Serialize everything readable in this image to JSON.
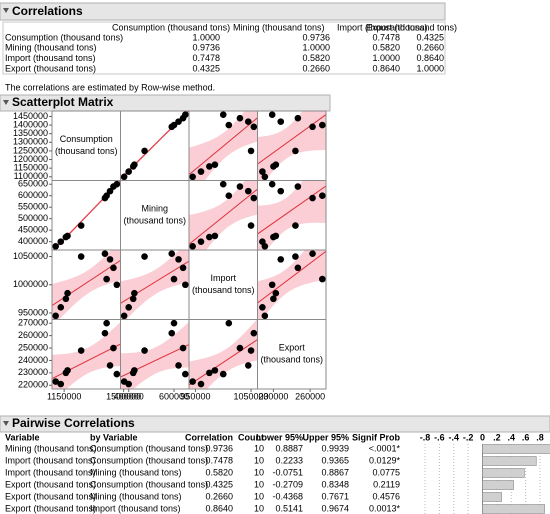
{
  "correlations": {
    "title": "Correlations",
    "columns": [
      "Consumption (thousand tons)",
      "Mining (thousand tons)",
      "Import (thousand tons)",
      "Export (thousand tons)"
    ],
    "value_color": "#2a2aa8",
    "rows": [
      {
        "label": "Consumption (thousand tons)",
        "values": [
          "1.0000",
          "0.9736",
          "0.7478",
          "0.4325"
        ]
      },
      {
        "label": "Mining (thousand tons)",
        "values": [
          "0.9736",
          "1.0000",
          "0.5820",
          "0.2660"
        ]
      },
      {
        "label": "Import (thousand tons)",
        "values": [
          "0.7478",
          "0.5820",
          "1.0000",
          "0.8640"
        ]
      },
      {
        "label": "Export (thousand tons)",
        "values": [
          "0.4325",
          "0.2660",
          "0.8640",
          "1.0000"
        ]
      }
    ],
    "note": "The correlations are estimated by Row-wise method."
  },
  "scatterplot_matrix": {
    "title": "Scatterplot Matrix",
    "point_color": "#000000",
    "fit_color": "#e0303a",
    "band_color": "#f9c6cc",
    "variables": [
      {
        "label_lines": [
          "Consumption",
          "(thousand tons)"
        ],
        "values": [
          1100000,
          1130000,
          1160000,
          1170000,
          1250000,
          1390000,
          1400000,
          1420000,
          1440000,
          1460000
        ],
        "yticks": [
          1100000,
          1150000,
          1200000,
          1250000,
          1300000,
          1350000,
          1400000,
          1450000
        ],
        "xticks": [
          1150000,
          1500000
        ]
      },
      {
        "label_lines": [
          "Mining",
          "(thousand tons)"
        ],
        "values": [
          380000,
          400000,
          420000,
          425000,
          470000,
          590000,
          600000,
          620000,
          640000,
          650000
        ],
        "yticks": [
          400000,
          450000,
          500000,
          550000,
          600000,
          650000
        ],
        "xticks": [
          400000,
          600000
        ]
      },
      {
        "label_lines": [
          "Import",
          "(thousand tons)"
        ],
        "values": [
          945000,
          960000,
          975000,
          985000,
          1050000,
          1055000,
          1010000,
          1045000,
          1030000,
          1000000
        ],
        "yticks": [
          950000,
          1000000,
          1050000
        ],
        "xticks": [
          950000,
          1050000
        ]
      },
      {
        "label_lines": [
          "Export",
          "(thousand tons)"
        ],
        "values": [
          223000,
          221000,
          230000,
          232000,
          248000,
          262000,
          270000,
          236000,
          250000,
          229000
        ],
        "yticks": [
          220000,
          230000,
          240000,
          250000,
          260000,
          270000
        ],
        "xticks": [
          230000,
          260000
        ]
      }
    ]
  },
  "pairwise": {
    "title": "Pairwise Correlations",
    "headers": [
      "Variable",
      "by Variable",
      "Correlation",
      "Count",
      "Lower 95%",
      "Upper 95%",
      "Signif Prob"
    ],
    "bar_ticks": [
      {
        "value": -0.8,
        "label": "-.8"
      },
      {
        "value": -0.6,
        "label": "-.6"
      },
      {
        "value": -0.4,
        "label": "-.4"
      },
      {
        "value": -0.2,
        "label": "-.2"
      },
      0,
      {
        "value": 0.2,
        "label": ".2"
      },
      {
        "value": 0.4,
        "label": ".4"
      },
      {
        "value": 0.6,
        "label": ".6"
      },
      {
        "value": 0.8,
        "label": ".8"
      }
    ],
    "bar_color": "#d0d0d0",
    "rows": [
      {
        "variable": "Mining (thousand tons)",
        "by_variable": "Consumption (thousand tons)",
        "correlation": {
          "value": 0.9736,
          "label": "0.9736"
        },
        "count": 10,
        "lower": "0.8887",
        "upper": "0.9939",
        "signif": "<.0001*",
        "signif_color": "#f07800"
      },
      {
        "variable": "Import (thousand tons)",
        "by_variable": "Consumption (thousand tons)",
        "correlation": {
          "value": 0.7478,
          "label": "0.7478"
        },
        "count": 10,
        "lower": "0.2233",
        "upper": "0.9365",
        "signif": "0.0129*",
        "signif_color": "#e03020"
      },
      {
        "variable": "Import (thousand tons)",
        "by_variable": "Mining (thousand tons)",
        "correlation": {
          "value": 0.582,
          "label": "0.5820"
        },
        "count": 10,
        "lower": "-0.0751",
        "upper": "0.8867",
        "signif": "0.0775",
        "signif_color": "#000000"
      },
      {
        "variable": "Export (thousand tons)",
        "by_variable": "Consumption (thousand tons)",
        "correlation": {
          "value": 0.4325,
          "label": "0.4325"
        },
        "count": 10,
        "lower": "-0.2709",
        "upper": "0.8348",
        "signif": "0.2119",
        "signif_color": "#000000"
      },
      {
        "variable": "Export (thousand tons)",
        "by_variable": "Mining (thousand tons)",
        "correlation": {
          "value": 0.266,
          "label": "0.2660"
        },
        "count": 10,
        "lower": "-0.4368",
        "upper": "0.7671",
        "signif": "0.4576",
        "signif_color": "#000000"
      },
      {
        "variable": "Export (thousand tons)",
        "by_variable": "Import (thousand tons)",
        "correlation": {
          "value": 0.864,
          "label": "0.8640"
        },
        "count": 10,
        "lower": "0.5141",
        "upper": "0.9674",
        "signif": "0.0013*",
        "signif_color": "#f07800"
      }
    ]
  }
}
